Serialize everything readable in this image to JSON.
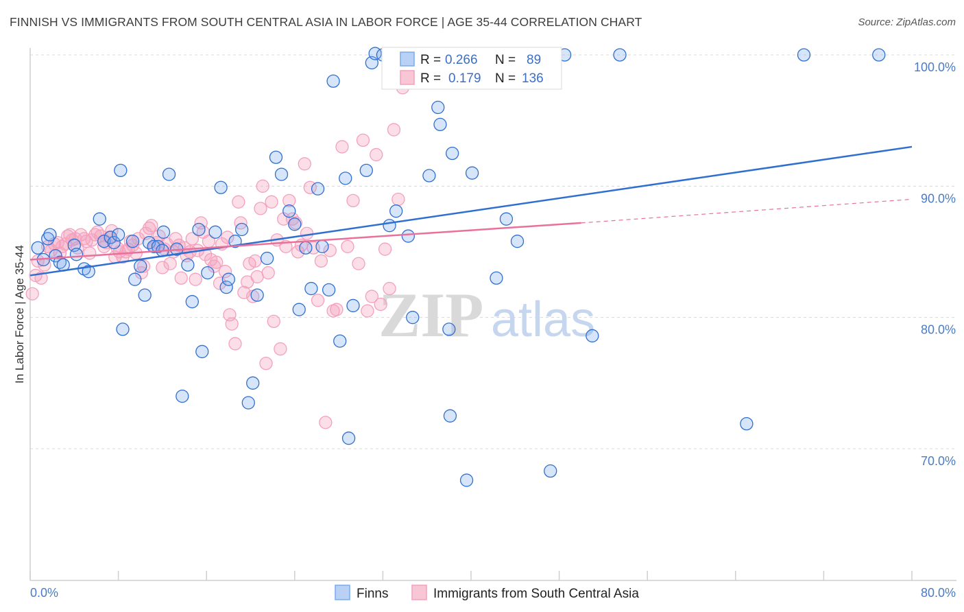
{
  "title": "FINNISH VS IMMIGRANTS FROM SOUTH CENTRAL ASIA IN LABOR FORCE | AGE 35-44 CORRELATION CHART",
  "source": "Source: ZipAtlas.com",
  "watermark": {
    "zip": "ZIP",
    "atlas": "atlas"
  },
  "colors": {
    "finns": "#7aaaf0",
    "finns_line": "#2f6fd0",
    "immigrants": "#f4a0bc",
    "immigrants_line": "#e8709a",
    "grid": "#d8d8d8",
    "tick_text": "#4a7bc4"
  },
  "legend_top": {
    "rows": [
      {
        "r_label": "R =",
        "r_value": "0.266",
        "n_label": "N =",
        "n_value": "89"
      },
      {
        "r_label": "R =",
        "r_value": "0.179",
        "n_label": "N =",
        "n_value": "136"
      }
    ]
  },
  "legend_bottom": [
    "Finns",
    "Immigrants from South Central Asia"
  ],
  "chart_data": {
    "type": "scatter",
    "title": "FINNISH VS IMMIGRANTS FROM SOUTH CENTRAL ASIA IN LABOR FORCE | AGE 35-44 CORRELATION CHART",
    "ylabel": "In Labor Force | Age 35-44",
    "xlabel": "",
    "xlim": [
      0,
      80
    ],
    "ylim": [
      60,
      101.5
    ],
    "x_tick_labels": [
      "0.0%",
      "80.0%"
    ],
    "y_ticks": [
      70,
      80,
      90,
      100
    ],
    "y_tick_labels": [
      "70.0%",
      "80.0%",
      "90.0%",
      "100.0%"
    ],
    "grid": true,
    "legend_position": "top-center",
    "series": [
      {
        "name": "Finns",
        "R": 0.266,
        "N": 89,
        "trend": {
          "x": [
            0,
            80
          ],
          "y": [
            83.2,
            93.0
          ]
        },
        "points": [
          [
            0.7,
            85.3
          ],
          [
            1.2,
            84.4
          ],
          [
            1.6,
            86.0
          ],
          [
            1.8,
            86.3
          ],
          [
            2.3,
            84.7
          ],
          [
            2.7,
            84.2
          ],
          [
            3.0,
            84.0
          ],
          [
            4.0,
            85.5
          ],
          [
            4.2,
            84.8
          ],
          [
            4.9,
            83.7
          ],
          [
            5.3,
            83.5
          ],
          [
            6.3,
            87.5
          ],
          [
            6.7,
            85.8
          ],
          [
            7.3,
            86.1
          ],
          [
            7.6,
            85.7
          ],
          [
            8.0,
            86.3
          ],
          [
            8.2,
            91.2
          ],
          [
            8.4,
            79.1
          ],
          [
            9.3,
            85.8
          ],
          [
            9.5,
            82.9
          ],
          [
            10.0,
            83.9
          ],
          [
            10.4,
            81.7
          ],
          [
            10.8,
            85.7
          ],
          [
            11.2,
            85.4
          ],
          [
            11.6,
            85.4
          ],
          [
            12.0,
            85.1
          ],
          [
            12.1,
            86.5
          ],
          [
            12.6,
            90.9
          ],
          [
            13.3,
            85.2
          ],
          [
            13.8,
            74.0
          ],
          [
            14.3,
            84.0
          ],
          [
            14.7,
            81.2
          ],
          [
            15.3,
            86.7
          ],
          [
            15.6,
            77.4
          ],
          [
            16.1,
            83.4
          ],
          [
            16.8,
            86.5
          ],
          [
            17.3,
            89.9
          ],
          [
            17.8,
            82.3
          ],
          [
            18.0,
            82.9
          ],
          [
            18.6,
            85.8
          ],
          [
            19.2,
            86.7
          ],
          [
            19.8,
            73.5
          ],
          [
            20.2,
            75.0
          ],
          [
            20.6,
            81.7
          ],
          [
            21.5,
            84.5
          ],
          [
            22.3,
            92.2
          ],
          [
            22.8,
            90.9
          ],
          [
            23.5,
            88.1
          ],
          [
            24.0,
            87.1
          ],
          [
            24.4,
            80.6
          ],
          [
            25.0,
            85.3
          ],
          [
            25.5,
            82.2
          ],
          [
            26.1,
            89.8
          ],
          [
            26.5,
            85.4
          ],
          [
            27.1,
            82.1
          ],
          [
            27.5,
            98.0
          ],
          [
            28.1,
            78.2
          ],
          [
            28.6,
            90.6
          ],
          [
            28.9,
            70.8
          ],
          [
            29.3,
            80.9
          ],
          [
            30.5,
            91.2
          ],
          [
            31.0,
            99.4
          ],
          [
            31.3,
            100.1
          ],
          [
            32.0,
            100.0
          ],
          [
            32.6,
            87.0
          ],
          [
            33.2,
            88.1
          ],
          [
            34.3,
            86.2
          ],
          [
            34.7,
            80.0
          ],
          [
            35.0,
            100.0
          ],
          [
            35.7,
            100.0
          ],
          [
            36.2,
            90.8
          ],
          [
            37.0,
            96.0
          ],
          [
            37.2,
            94.7
          ],
          [
            38.0,
            79.1
          ],
          [
            38.3,
            92.5
          ],
          [
            38.1,
            72.5
          ],
          [
            39.6,
            67.6
          ],
          [
            40.1,
            91.0
          ],
          [
            41.6,
            100.0
          ],
          [
            42.3,
            83.0
          ],
          [
            43.2,
            87.5
          ],
          [
            44.2,
            85.8
          ],
          [
            45.4,
            100.0
          ],
          [
            47.2,
            68.3
          ],
          [
            48.5,
            100.0
          ],
          [
            51.0,
            78.6
          ],
          [
            53.5,
            100.0
          ],
          [
            65.0,
            71.9
          ],
          [
            70.2,
            100.0
          ],
          [
            77.0,
            100.0
          ]
        ]
      },
      {
        "name": "Immigrants from South Central Asia",
        "R": 0.179,
        "N": 136,
        "trend": {
          "x": [
            0,
            50
          ],
          "y": [
            84.4,
            87.2
          ]
        },
        "trend_dashed": {
          "x": [
            50,
            80
          ],
          "y": [
            87.2,
            89.0
          ]
        },
        "points": [
          [
            0.2,
            81.8
          ],
          [
            0.5,
            83.2
          ],
          [
            0.7,
            84.3
          ],
          [
            1.0,
            83.0
          ],
          [
            1.3,
            84.0
          ],
          [
            1.6,
            85.4
          ],
          [
            1.9,
            85.1
          ],
          [
            2.2,
            85.6
          ],
          [
            2.5,
            85.7
          ],
          [
            2.7,
            84.9
          ],
          [
            2.9,
            85.4
          ],
          [
            3.2,
            85.6
          ],
          [
            3.4,
            86.2
          ],
          [
            3.6,
            86.3
          ],
          [
            3.8,
            85.9
          ],
          [
            4.1,
            86.0
          ],
          [
            4.3,
            85.3
          ],
          [
            4.6,
            86.3
          ],
          [
            4.9,
            86.0
          ],
          [
            5.1,
            85.8
          ],
          [
            5.4,
            84.9
          ],
          [
            5.6,
            85.9
          ],
          [
            5.9,
            86.3
          ],
          [
            6.1,
            86.5
          ],
          [
            6.4,
            86.2
          ],
          [
            6.7,
            85.4
          ],
          [
            6.9,
            85.7
          ],
          [
            7.2,
            86.1
          ],
          [
            7.4,
            86.6
          ],
          [
            7.7,
            84.6
          ],
          [
            7.9,
            85.3
          ],
          [
            8.1,
            85.0
          ],
          [
            8.4,
            84.6
          ],
          [
            8.7,
            85.0
          ],
          [
            8.9,
            85.2
          ],
          [
            9.1,
            85.8
          ],
          [
            9.3,
            85.5
          ],
          [
            9.6,
            84.9
          ],
          [
            9.8,
            86.0
          ],
          [
            10.1,
            83.4
          ],
          [
            10.3,
            83.9
          ],
          [
            10.5,
            86.4
          ],
          [
            10.8,
            86.8
          ],
          [
            11.0,
            87.0
          ],
          [
            11.3,
            85.4
          ],
          [
            11.5,
            85.7
          ],
          [
            11.7,
            86.2
          ],
          [
            12.0,
            83.8
          ],
          [
            12.2,
            85.2
          ],
          [
            12.4,
            85.6
          ],
          [
            12.7,
            84.1
          ],
          [
            13.0,
            85.0
          ],
          [
            13.2,
            86.0
          ],
          [
            13.5,
            85.5
          ],
          [
            13.7,
            83.0
          ],
          [
            14.0,
            85.3
          ],
          [
            14.2,
            84.7
          ],
          [
            14.5,
            85.0
          ],
          [
            14.7,
            86.0
          ],
          [
            15.0,
            82.9
          ],
          [
            15.2,
            85.1
          ],
          [
            15.5,
            87.2
          ],
          [
            15.7,
            86.5
          ],
          [
            15.9,
            84.8
          ],
          [
            16.2,
            85.8
          ],
          [
            16.4,
            84.4
          ],
          [
            16.7,
            83.9
          ],
          [
            16.9,
            84.2
          ],
          [
            17.2,
            82.6
          ],
          [
            17.4,
            85.6
          ],
          [
            17.7,
            83.5
          ],
          [
            17.9,
            86.1
          ],
          [
            18.1,
            80.2
          ],
          [
            18.3,
            79.5
          ],
          [
            18.6,
            78.0
          ],
          [
            18.9,
            88.8
          ],
          [
            19.1,
            87.2
          ],
          [
            19.4,
            81.9
          ],
          [
            19.7,
            82.7
          ],
          [
            19.9,
            84.1
          ],
          [
            20.2,
            81.6
          ],
          [
            20.4,
            84.3
          ],
          [
            20.6,
            83.1
          ],
          [
            20.9,
            88.3
          ],
          [
            21.1,
            90.0
          ],
          [
            21.4,
            76.5
          ],
          [
            21.6,
            83.4
          ],
          [
            21.9,
            88.8
          ],
          [
            22.1,
            79.7
          ],
          [
            22.4,
            85.9
          ],
          [
            22.7,
            77.6
          ],
          [
            23.0,
            87.5
          ],
          [
            23.2,
            85.4
          ],
          [
            23.5,
            88.9
          ],
          [
            23.8,
            87.5
          ],
          [
            24.1,
            87.2
          ],
          [
            24.3,
            85.0
          ],
          [
            24.6,
            85.5
          ],
          [
            24.9,
            91.7
          ],
          [
            25.1,
            86.4
          ],
          [
            25.4,
            89.9
          ],
          [
            25.7,
            85.3
          ],
          [
            26.1,
            81.3
          ],
          [
            26.4,
            84.3
          ],
          [
            26.8,
            72.0
          ],
          [
            27.2,
            85.1
          ],
          [
            27.5,
            80.5
          ],
          [
            27.8,
            80.6
          ],
          [
            28.3,
            93.0
          ],
          [
            28.8,
            85.4
          ],
          [
            29.3,
            88.9
          ],
          [
            29.8,
            84.1
          ],
          [
            30.2,
            93.5
          ],
          [
            30.6,
            80.5
          ],
          [
            31.0,
            81.6
          ],
          [
            31.4,
            92.4
          ],
          [
            31.8,
            81.0
          ],
          [
            32.2,
            85.2
          ],
          [
            32.6,
            82.2
          ],
          [
            33.0,
            94.3
          ],
          [
            33.4,
            89.0
          ],
          [
            33.8,
            97.5
          ],
          [
            34.2,
            100.0
          ],
          [
            34.7,
            100.0
          ],
          [
            35.3,
            100.0
          ]
        ]
      }
    ]
  }
}
